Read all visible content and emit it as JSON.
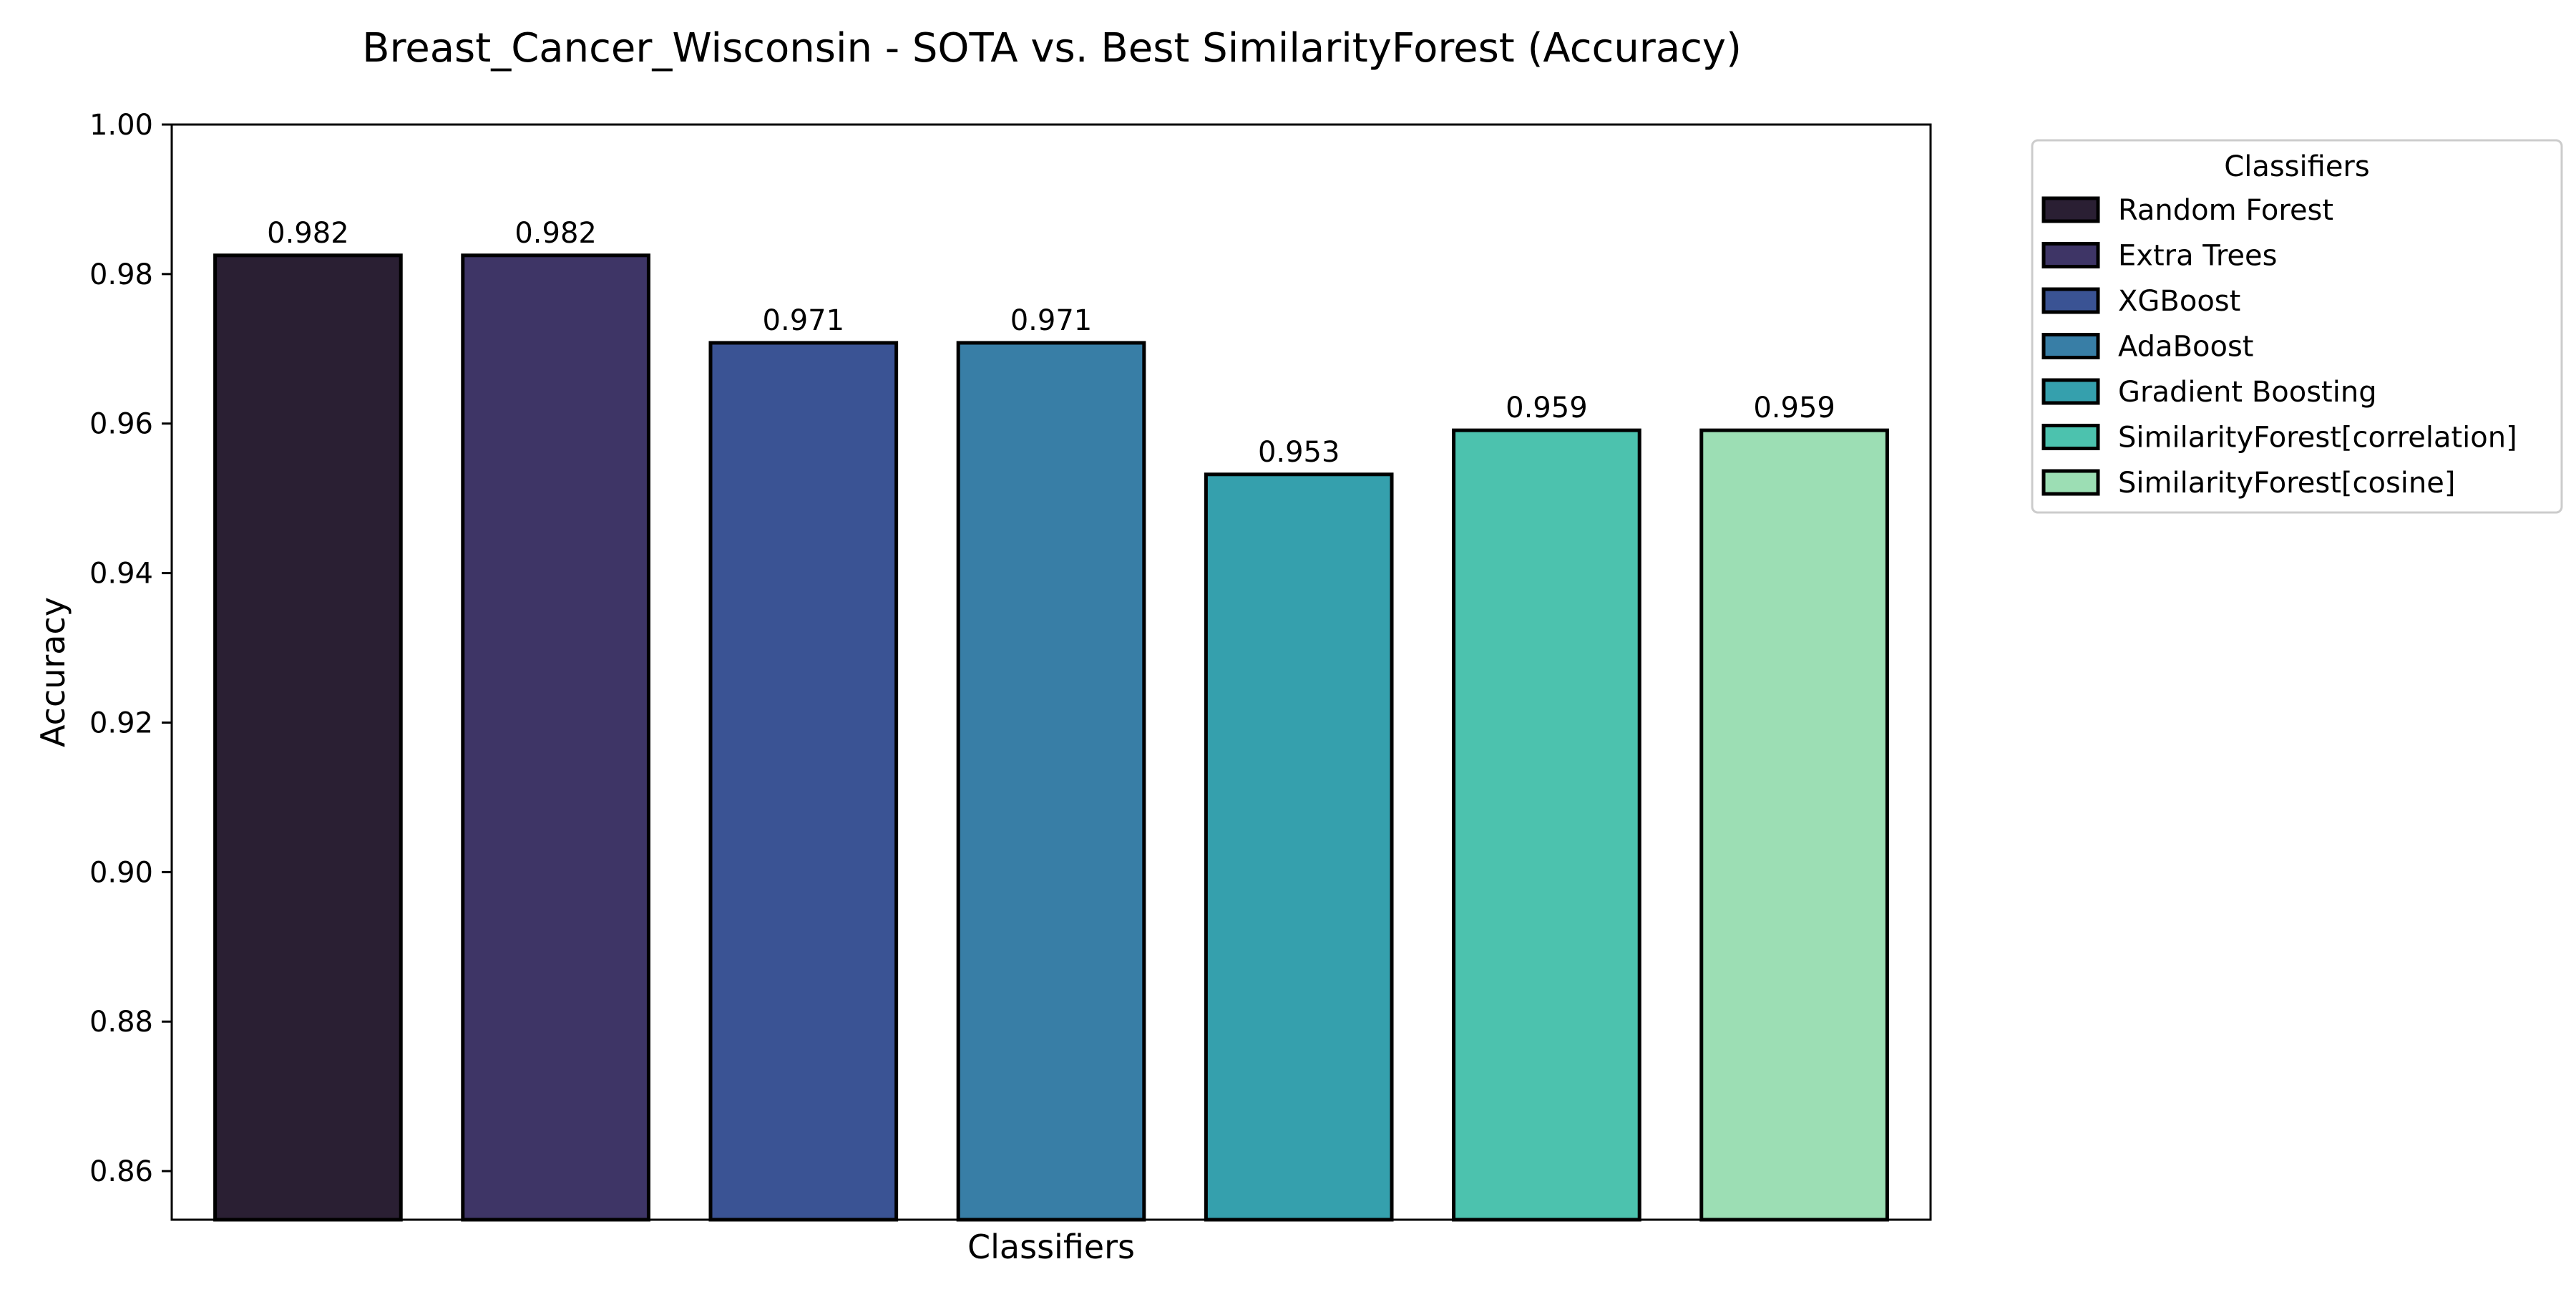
{
  "chart_data": {
    "type": "bar",
    "title": "Breast_Cancer_Wisconsin - SOTA vs. Best SimilarityForest (Accuracy)",
    "xlabel": "Classifiers",
    "ylabel": "Accuracy",
    "ylim": [
      0.8535,
      1.0
    ],
    "yticks": [
      "0.86",
      "0.88",
      "0.90",
      "0.92",
      "0.94",
      "0.96",
      "0.98",
      "1.00"
    ],
    "ytick_values": [
      0.86,
      0.88,
      0.9,
      0.92,
      0.94,
      0.96,
      0.98,
      1.0
    ],
    "grid": false,
    "legend": {
      "title": "Classifiers",
      "placement": "outside-upper-right"
    },
    "categories": [
      "Random Forest",
      "Extra Trees",
      "XGBoost",
      "AdaBoost",
      "Gradient Boosting",
      "SimilarityForest[correlation]",
      "SimilarityForest[cosine]"
    ],
    "values": [
      0.9825,
      0.9825,
      0.9708,
      0.9708,
      0.9532,
      0.9591,
      0.9591
    ],
    "value_labels": [
      "0.982",
      "0.982",
      "0.971",
      "0.971",
      "0.953",
      "0.959",
      "0.959"
    ],
    "colors": [
      "#2a1f33",
      "#3e3566",
      "#3a5394",
      "#387ea6",
      "#35a0ad",
      "#4cc2ae",
      "#9cdeb4"
    ],
    "edge_color": "#000000"
  }
}
